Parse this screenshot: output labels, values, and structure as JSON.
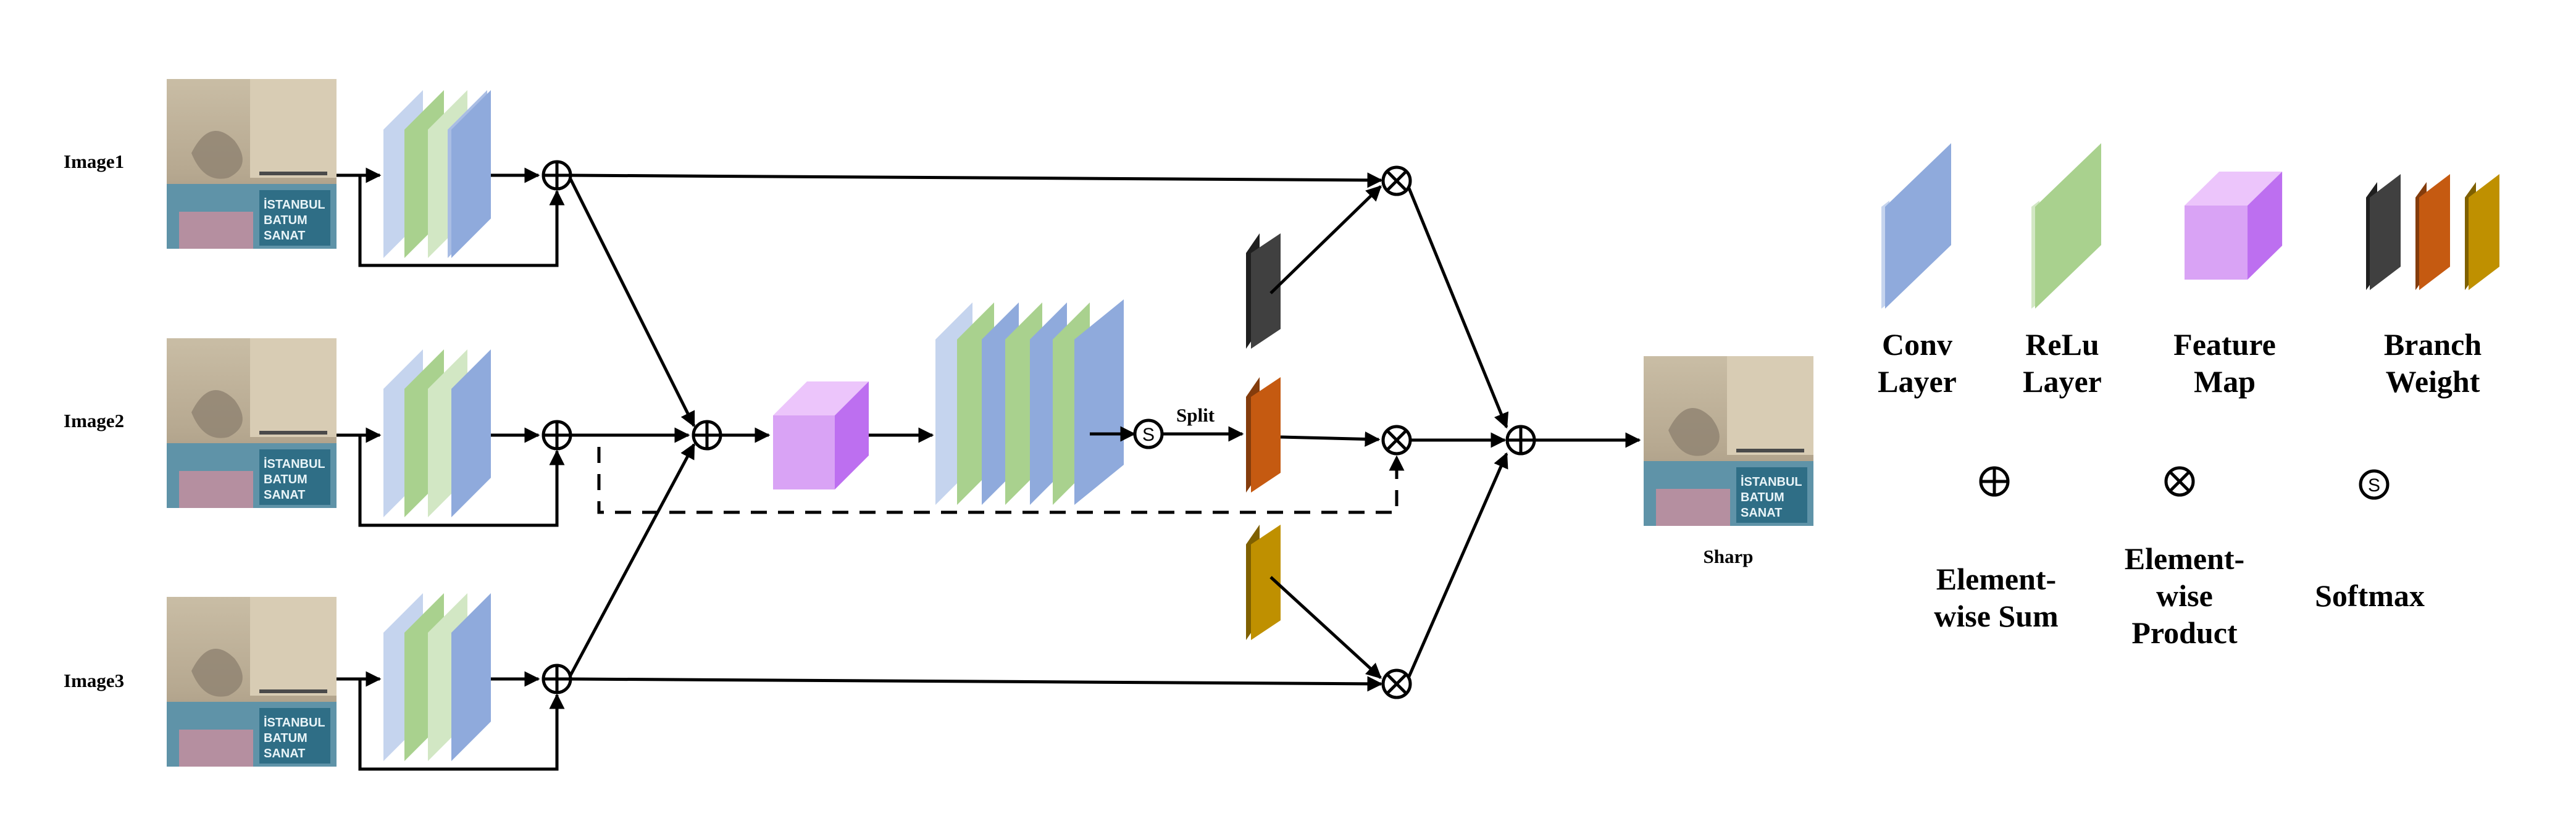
{
  "inputs": [
    {
      "label": "Image1",
      "photo_text": [
        "İSTANBUL",
        "BATUM",
        "SANAT"
      ]
    },
    {
      "label": "Image2",
      "photo_text": [
        "İSTANBUL",
        "BATUM",
        "SANAT"
      ]
    },
    {
      "label": "Image3",
      "photo_text": [
        "İSTANBUL",
        "BATUM",
        "SANAT"
      ]
    }
  ],
  "split_label": "Split",
  "softmax_symbol": "S",
  "output": {
    "label": "Sharp",
    "photo_text": [
      "İSTANBUL",
      "BATUM",
      "SANAT"
    ]
  },
  "legend": {
    "conv": [
      "Conv",
      "Layer"
    ],
    "relu": [
      "ReLu",
      "Layer"
    ],
    "feature": [
      "Feature",
      "Map"
    ],
    "branch": [
      "Branch",
      "Weight"
    ],
    "sum": [
      "Element-",
      "wise Sum"
    ],
    "product": [
      "Element-",
      "wise",
      "Product"
    ],
    "softmax": [
      "Softmax"
    ]
  },
  "colors": {
    "conv": "#8faadc",
    "relu": "#a9d18e",
    "feature": "#d9a3f5",
    "branch_1": "#404040",
    "branch_2": "#c55a11",
    "branch_3": "#bf9000"
  }
}
